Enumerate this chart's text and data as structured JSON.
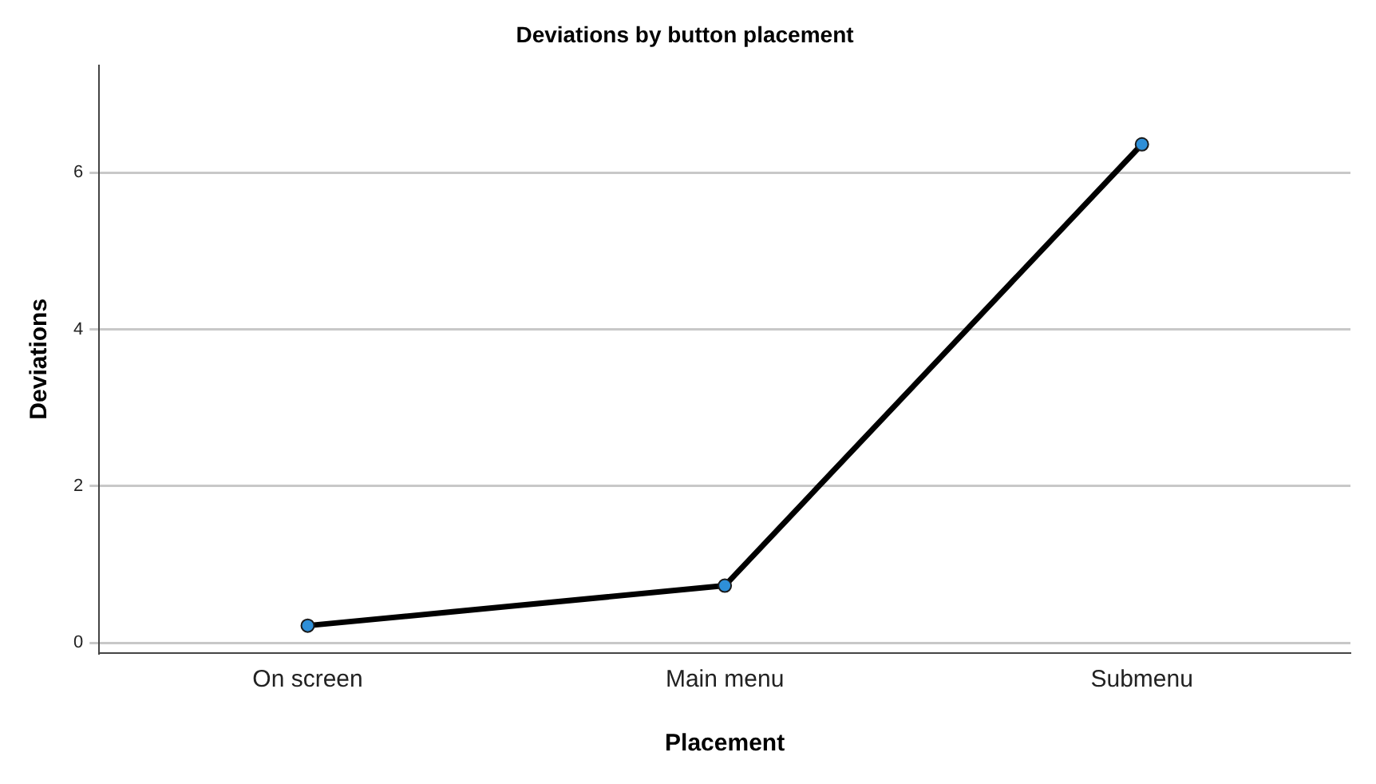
{
  "chart_data": {
    "type": "line",
    "title": "Deviations by button placement",
    "xlabel": "Placement",
    "ylabel": "Deviations",
    "categories": [
      "On screen",
      "Main menu",
      "Submenu"
    ],
    "series": [
      {
        "color": "#000000",
        "values": [
          0.22,
          0.73,
          6.36
        ]
      }
    ],
    "ylim": [
      -0.13,
      7.37
    ],
    "yticks": [
      0,
      2,
      4,
      6
    ],
    "grid": "y",
    "marker": "circle",
    "line_style": "solid",
    "legend": false
  }
}
